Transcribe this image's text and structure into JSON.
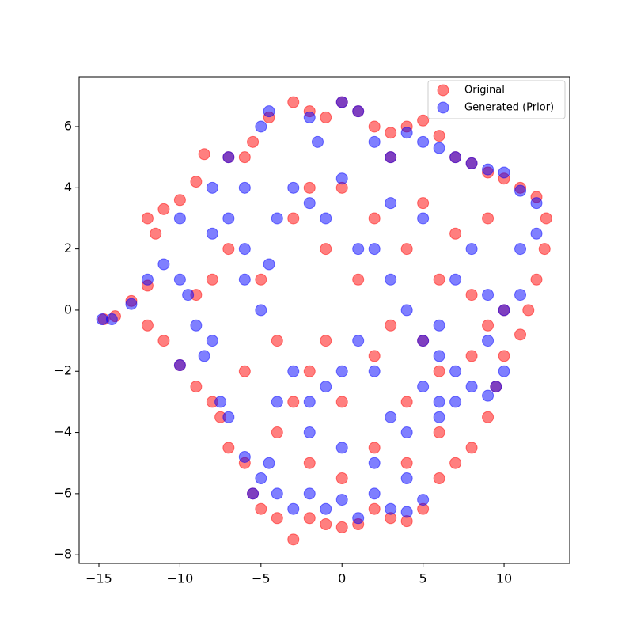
{
  "chart_data": {
    "type": "scatter",
    "xlim": [
      -16.22,
      14.05
    ],
    "ylim": [
      -8.28,
      7.63
    ],
    "xticks": [
      {
        "value": -15,
        "label": "−15"
      },
      {
        "value": -10,
        "label": "−10"
      },
      {
        "value": -5,
        "label": "−5"
      },
      0,
      5,
      10
    ],
    "yticks": [
      {
        "value": -8,
        "label": "−8"
      },
      {
        "value": -6,
        "label": "−6"
      },
      {
        "value": -4,
        "label": "−4"
      },
      {
        "value": -2,
        "label": "−2"
      },
      0,
      2,
      4,
      6
    ],
    "legend": "upper right",
    "series": [
      {
        "name": "Original",
        "color": "#ff0000",
        "x": [
          -14.7,
          -14,
          -13,
          -12,
          -11.5,
          -12,
          -11,
          -10,
          -9,
          -8.5,
          -7,
          -6,
          -5.5,
          -4.5,
          -3,
          -2,
          -1,
          0,
          1,
          2,
          3,
          4,
          5,
          6,
          7,
          8,
          9,
          10,
          11,
          12,
          12.6,
          12.5,
          12,
          11.5,
          11,
          10,
          9.5,
          9,
          8,
          7,
          6,
          5,
          4,
          3,
          2,
          1,
          0,
          -1,
          -2,
          -3,
          -4,
          -5,
          -5.5,
          -6,
          -7,
          -7.5,
          -8,
          -9,
          -10,
          -11,
          -12,
          -8,
          -7,
          -5,
          -3,
          -2,
          0,
          2,
          4,
          6,
          8,
          10,
          -6,
          -4,
          -2,
          0,
          2,
          4,
          6,
          8,
          -4,
          -2,
          0,
          2,
          4,
          6,
          1,
          3,
          -1,
          5,
          7,
          9,
          -9,
          -3,
          3,
          -1,
          5,
          9
        ],
        "values": [
          -0.3,
          -0.2,
          0.3,
          0.8,
          2.5,
          3,
          3.3,
          3.6,
          4.2,
          5.1,
          5,
          5,
          5.5,
          6.3,
          6.8,
          6.5,
          6.3,
          6.8,
          6.5,
          6,
          5.8,
          6,
          6.2,
          5.7,
          5,
          4.8,
          4.5,
          4.3,
          4,
          3.7,
          3,
          2,
          1,
          0,
          -0.8,
          -1.5,
          -2.5,
          -3.5,
          -4.5,
          -5,
          -5.5,
          -6.5,
          -6.9,
          -6.8,
          -6.5,
          -7,
          -7.1,
          -7,
          -6.8,
          -7.5,
          -6.8,
          -6.5,
          -6,
          -5,
          -4.5,
          -3.5,
          -3,
          -2.5,
          -1.8,
          -1,
          -0.5,
          1,
          2,
          1,
          3,
          4,
          4,
          3,
          2,
          1,
          0.5,
          0,
          -2,
          -1,
          -2,
          -3,
          -1.5,
          -3,
          -2,
          -1.5,
          -4,
          -5,
          -5.5,
          -4.5,
          -5,
          -4,
          1,
          -0.5,
          2,
          3.5,
          2.5,
          3,
          0.5,
          -3,
          5,
          -1,
          -1,
          -0.5
        ]
      },
      {
        "name": "Generated (Prior)",
        "color": "#0000ff",
        "x": [
          -14.8,
          -14.2,
          -13,
          -12,
          -11,
          -10,
          -9.5,
          -9,
          -10,
          -8.5,
          -8,
          -7,
          -7,
          -6,
          -5,
          -4.5,
          -2,
          -1.5,
          0,
          1,
          2,
          3,
          4,
          5,
          6,
          7,
          8,
          9,
          10,
          11,
          12,
          12,
          11,
          11,
          10,
          9,
          9.5,
          9,
          7,
          6,
          5,
          4,
          3,
          2,
          1,
          0,
          -1,
          -2,
          -3,
          -4,
          -5,
          -5.5,
          -6,
          -7,
          -7.5,
          -8,
          -6,
          -5,
          -4.5,
          -4,
          -3,
          -2,
          -1,
          0,
          1,
          2,
          3,
          4,
          5,
          6,
          7,
          8,
          -3,
          -2,
          -1,
          0,
          1,
          2,
          3,
          4,
          5,
          6,
          -4,
          -4.5,
          -2,
          0,
          2,
          4,
          5,
          7,
          8,
          9,
          -8,
          -10,
          3,
          -6,
          6,
          10
        ],
        "values": [
          -0.3,
          -0.3,
          0.2,
          1,
          1.5,
          1,
          0.5,
          -0.5,
          -1.8,
          -1.5,
          2.5,
          3,
          5,
          4,
          6,
          6.5,
          6.3,
          5.5,
          6.8,
          6.5,
          5.5,
          5,
          5.8,
          5.5,
          5.3,
          5,
          4.8,
          4.6,
          4.5,
          3.9,
          3.5,
          2.5,
          2,
          0.5,
          0,
          -1,
          -2.5,
          -2.8,
          -3,
          -3.5,
          -6.2,
          -6.6,
          -6.5,
          -6,
          -6.8,
          -6.2,
          -6.5,
          -6,
          -6.5,
          -6,
          -5.5,
          -6,
          -4.8,
          -3.5,
          -3,
          -1,
          1,
          0,
          1.5,
          3,
          4,
          3.5,
          3,
          4.3,
          2,
          2,
          1,
          0,
          -1,
          -1.5,
          -2,
          -2.5,
          -2,
          -3,
          -2.5,
          -2,
          -1,
          -2,
          -3.5,
          -4,
          -2.5,
          -3,
          -3,
          -5,
          -4,
          -4.5,
          -5,
          -5.5,
          3,
          1,
          2,
          0.5,
          4,
          3,
          3.5,
          2,
          -0.5,
          -2
        ]
      }
    ]
  }
}
